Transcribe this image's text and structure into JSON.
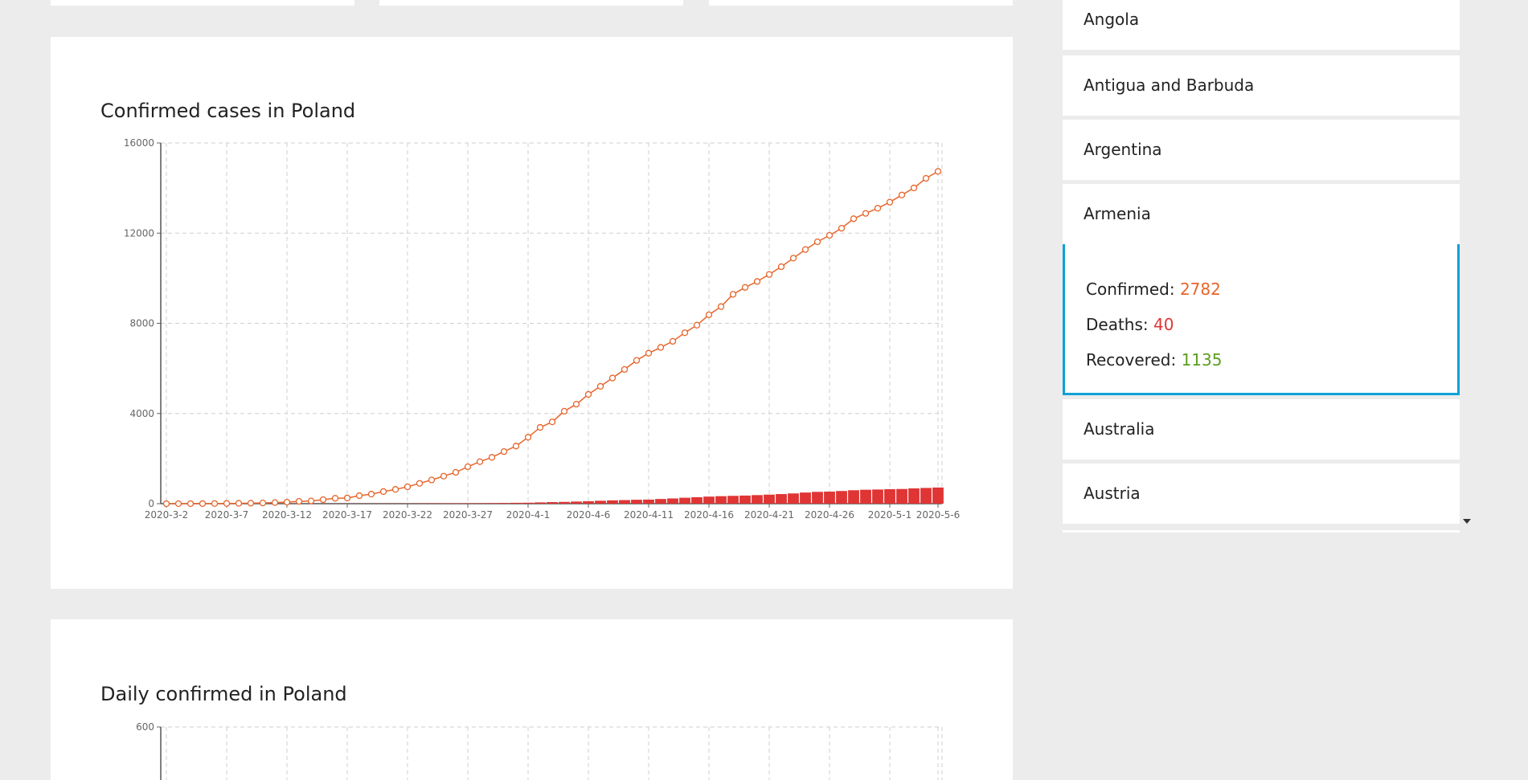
{
  "countries": {
    "list_above": [
      "Angola",
      "Antigua and Barbuda",
      "Argentina",
      "Armenia"
    ],
    "list_below": [
      "Australia",
      "Austria"
    ],
    "selected": {
      "name": "Armenia",
      "confirmed_label": "Confirmed:",
      "confirmed_value": "2782",
      "deaths_label": "Deaths:",
      "deaths_value": "40",
      "recovered_label": "Recovered:",
      "recovered_value": "1135"
    }
  },
  "colors": {
    "confirmed": "#e6652b",
    "deaths": "#e03535",
    "recovered": "#5c9d1f",
    "selected_border": "#0ea1d6"
  },
  "charts": {
    "cumulative_title": "Confirmed cases in Poland",
    "daily_title": "Daily confirmed in Poland"
  },
  "chart_data": [
    {
      "type": "line",
      "title": "Confirmed cases in Poland",
      "start_date": "2020-3-2",
      "x_tick_labels": [
        "2020-3-2",
        "2020-3-7",
        "2020-3-12",
        "2020-3-17",
        "2020-3-22",
        "2020-3-27",
        "2020-4-1",
        "2020-4-6",
        "2020-4-11",
        "2020-4-16",
        "2020-4-21",
        "2020-4-26",
        "2020-5-1",
        "2020-5-6"
      ],
      "y_ticks": [
        0,
        4000,
        8000,
        12000,
        16000
      ],
      "ylim": [
        0,
        16000
      ],
      "grid": true,
      "series": [
        {
          "kind": "line",
          "color": "#e6652b",
          "values": [
            0,
            0,
            1,
            2,
            5,
            11,
            16,
            22,
            31,
            49,
            68,
            103,
            119,
            177,
            238,
            251,
            355,
            425,
            536,
            634,
            749,
            901,
            1051,
            1221,
            1389,
            1638,
            1862,
            2055,
            2311,
            2554,
            2946,
            3383,
            3627,
            4102,
            4413,
            4848,
            5205,
            5575,
            5955,
            6356,
            6674,
            6934,
            7202,
            7582,
            7918,
            8379,
            8742,
            9287,
            9593,
            9856,
            10169,
            10511,
            10892,
            11273,
            11617,
            11902,
            12218,
            12640,
            12877,
            13105,
            13375,
            13693,
            14006,
            14431,
            14740
          ]
        },
        {
          "kind": "bar",
          "color": "#e03535",
          "values": [
            0,
            0,
            0,
            0,
            0,
            0,
            0,
            0,
            0,
            0,
            1,
            3,
            3,
            4,
            5,
            5,
            5,
            5,
            7,
            7,
            8,
            10,
            14,
            16,
            18,
            18,
            22,
            26,
            31,
            39,
            43,
            57,
            71,
            79,
            94,
            107,
            129,
            146,
            159,
            174,
            181,
            208,
            232,
            263,
            286,
            314,
            332,
            347,
            360,
            380,
            401,
            426,
            454,
            494,
            524,
            535,
            562,
            596,
            618,
            628,
            644,
            651,
            678,
            698,
            716
          ]
        }
      ]
    },
    {
      "type": "bar",
      "title": "Daily confirmed in Poland",
      "y_ticks": [
        600
      ],
      "visible_partial": true
    }
  ]
}
